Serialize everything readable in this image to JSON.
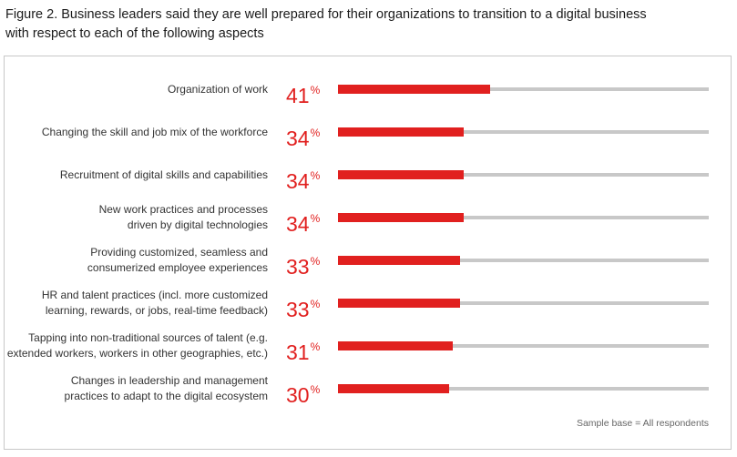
{
  "title": "Figure 2. Business leaders said they are well prepared for their organizations to transition to a digital business\nwith respect to each of the following aspects",
  "colors": {
    "bar": "#e1201f",
    "track": "#c8c8c8",
    "value_text": "#e1201f"
  },
  "note": "Sample base = All respondents",
  "chart_data": {
    "type": "bar",
    "orientation": "horizontal",
    "title": "Figure 2. Business leaders said they are well prepared for their organizations to transition to a digital business with respect to each of the following aspects",
    "categories": [
      "Organization of work",
      "Changing the skill and job mix of the workforce",
      "Recruitment of digital skills and capabilities",
      "New work practices and processes\ndriven by digital technologies",
      "Providing customized, seamless and\nconsumerized employee experiences",
      "HR and talent practices (incl. more customized\nlearning, rewards, or jobs, real-time feedback)",
      "Tapping into non-traditional sources of talent (e.g.\nextended workers, workers in other geographies, etc.)",
      "Changes in leadership and management\npractices to adapt to the digital ecosystem"
    ],
    "values": [
      41,
      34,
      34,
      34,
      33,
      33,
      31,
      30
    ],
    "unit": "%",
    "xlim": [
      0,
      100
    ],
    "grid": false,
    "legend": "none"
  }
}
